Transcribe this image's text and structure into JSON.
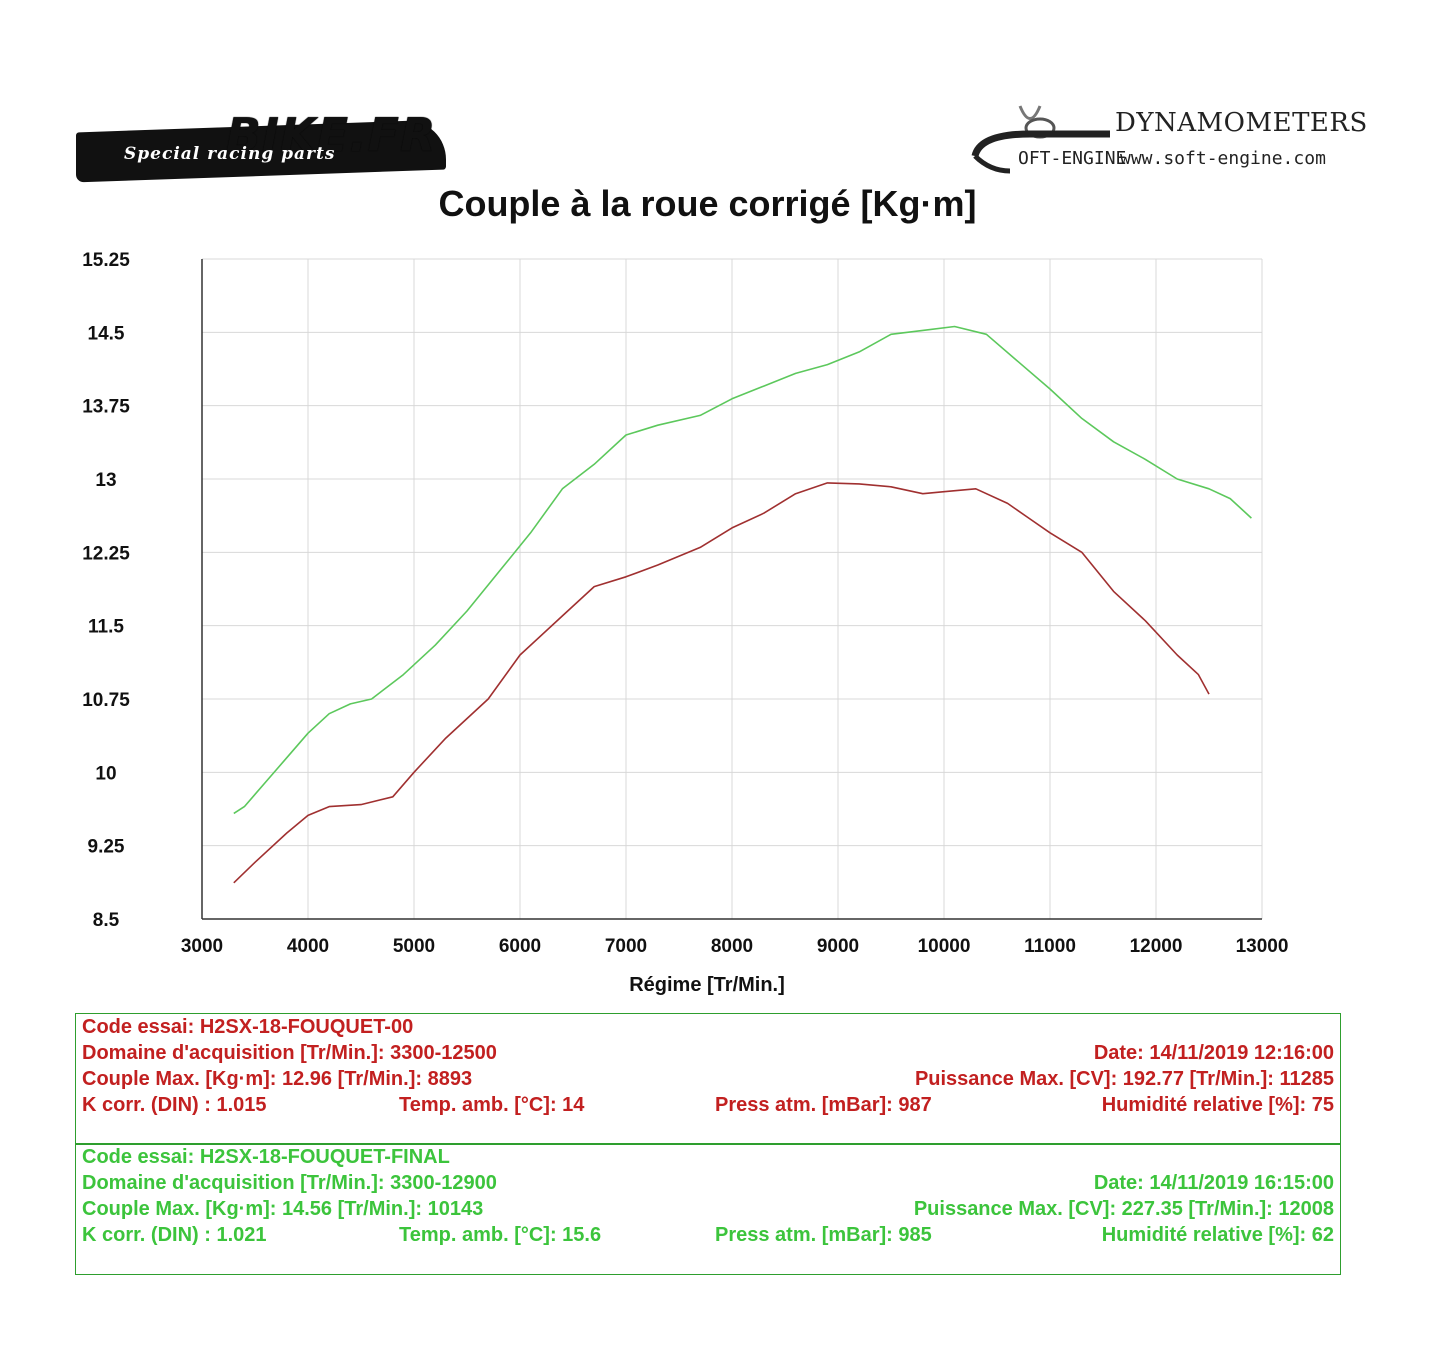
{
  "header": {
    "left_logo_brand": "BIKE.FR",
    "left_logo_tagline": "Special racing parts",
    "right_logo_name": "DYNAMOMETERS",
    "right_logo_softengine": "OFT-ENGINE",
    "right_logo_url": "www.soft-engine.com"
  },
  "chart_data": {
    "type": "line",
    "title": "Couple à la roue corrigé [Kg·m]",
    "xlabel": "Régime [Tr/Min.]",
    "ylabel": "",
    "xlim": [
      3000,
      13000
    ],
    "ylim": [
      8.5,
      15.25
    ],
    "x_ticks": [
      "3000",
      "4000",
      "5000",
      "6000",
      "7000",
      "8000",
      "9000",
      "10000",
      "11000",
      "12000",
      "13000"
    ],
    "y_ticks": [
      "15.25",
      "14.5",
      "13.75",
      "13",
      "12.25",
      "11.5",
      "10.75",
      "10",
      "9.25",
      "8.5"
    ],
    "grid": true,
    "series": [
      {
        "color": "#a03030",
        "x": [
          3300,
          3500,
          3800,
          4000,
          4200,
          4500,
          4800,
          5000,
          5300,
          5700,
          6000,
          6400,
          6700,
          7000,
          7300,
          7700,
          8000,
          8300,
          8600,
          8900,
          9200,
          9500,
          9800,
          10000,
          10300,
          10600,
          10800,
          11000,
          11300,
          11600,
          11900,
          12200,
          12400,
          12500
        ],
        "y": [
          8.87,
          9.08,
          9.38,
          9.56,
          9.65,
          9.67,
          9.75,
          10.0,
          10.35,
          10.75,
          11.2,
          11.6,
          11.9,
          12.0,
          12.12,
          12.3,
          12.5,
          12.65,
          12.85,
          12.96,
          12.95,
          12.92,
          12.85,
          12.87,
          12.9,
          12.75,
          12.6,
          12.45,
          12.25,
          11.85,
          11.55,
          11.2,
          11.0,
          10.8
        ]
      },
      {
        "color": "#5cc85c",
        "x": [
          3300,
          3400,
          3600,
          3800,
          4000,
          4200,
          4400,
          4600,
          4900,
          5200,
          5500,
          5800,
          6100,
          6400,
          6700,
          7000,
          7300,
          7700,
          8000,
          8300,
          8600,
          8900,
          9200,
          9500,
          9800,
          10100,
          10400,
          10700,
          11000,
          11300,
          11600,
          11900,
          12200,
          12500,
          12700,
          12900
        ],
        "y": [
          9.58,
          9.65,
          9.9,
          10.15,
          10.4,
          10.6,
          10.7,
          10.75,
          11.0,
          11.3,
          11.65,
          12.05,
          12.45,
          12.9,
          13.15,
          13.45,
          13.55,
          13.65,
          13.82,
          13.95,
          14.08,
          14.17,
          14.3,
          14.48,
          14.52,
          14.56,
          14.48,
          14.2,
          13.92,
          13.62,
          13.38,
          13.2,
          13.0,
          12.9,
          12.8,
          12.6
        ]
      }
    ]
  },
  "test1": {
    "code": "Code essai: H2SX-18-FOUQUET-00",
    "domain": "Domaine d'acquisition [Tr/Min.]: 3300-12500",
    "date": "Date: 14/11/2019   12:16:00",
    "couple": "Couple Max. [Kg·m]: 12.96   [Tr/Min.]: 8893",
    "puissance": "Puissance Max. [CV]: 192.77   [Tr/Min.]: 11285",
    "kcorr": "K corr. (DIN) : 1.015",
    "temp": "Temp. amb. [°C]: 14",
    "press": "Press atm. [mBar]: 987",
    "hum": "Humidité relative [%]: 75"
  },
  "test2": {
    "code": "Code essai: H2SX-18-FOUQUET-FINAL",
    "domain": "Domaine d'acquisition [Tr/Min.]: 3300-12900",
    "date": "Date: 14/11/2019   16:15:00",
    "couple": "Couple Max. [Kg·m]: 14.56   [Tr/Min.]: 10143",
    "puissance": "Puissance Max. [CV]: 227.35   [Tr/Min.]: 12008",
    "kcorr": "K corr. (DIN) : 1.021",
    "temp": "Temp. amb. [°C]: 15.6",
    "press": "Press atm. [mBar]: 985",
    "hum": "Humidité relative [%]: 62"
  }
}
